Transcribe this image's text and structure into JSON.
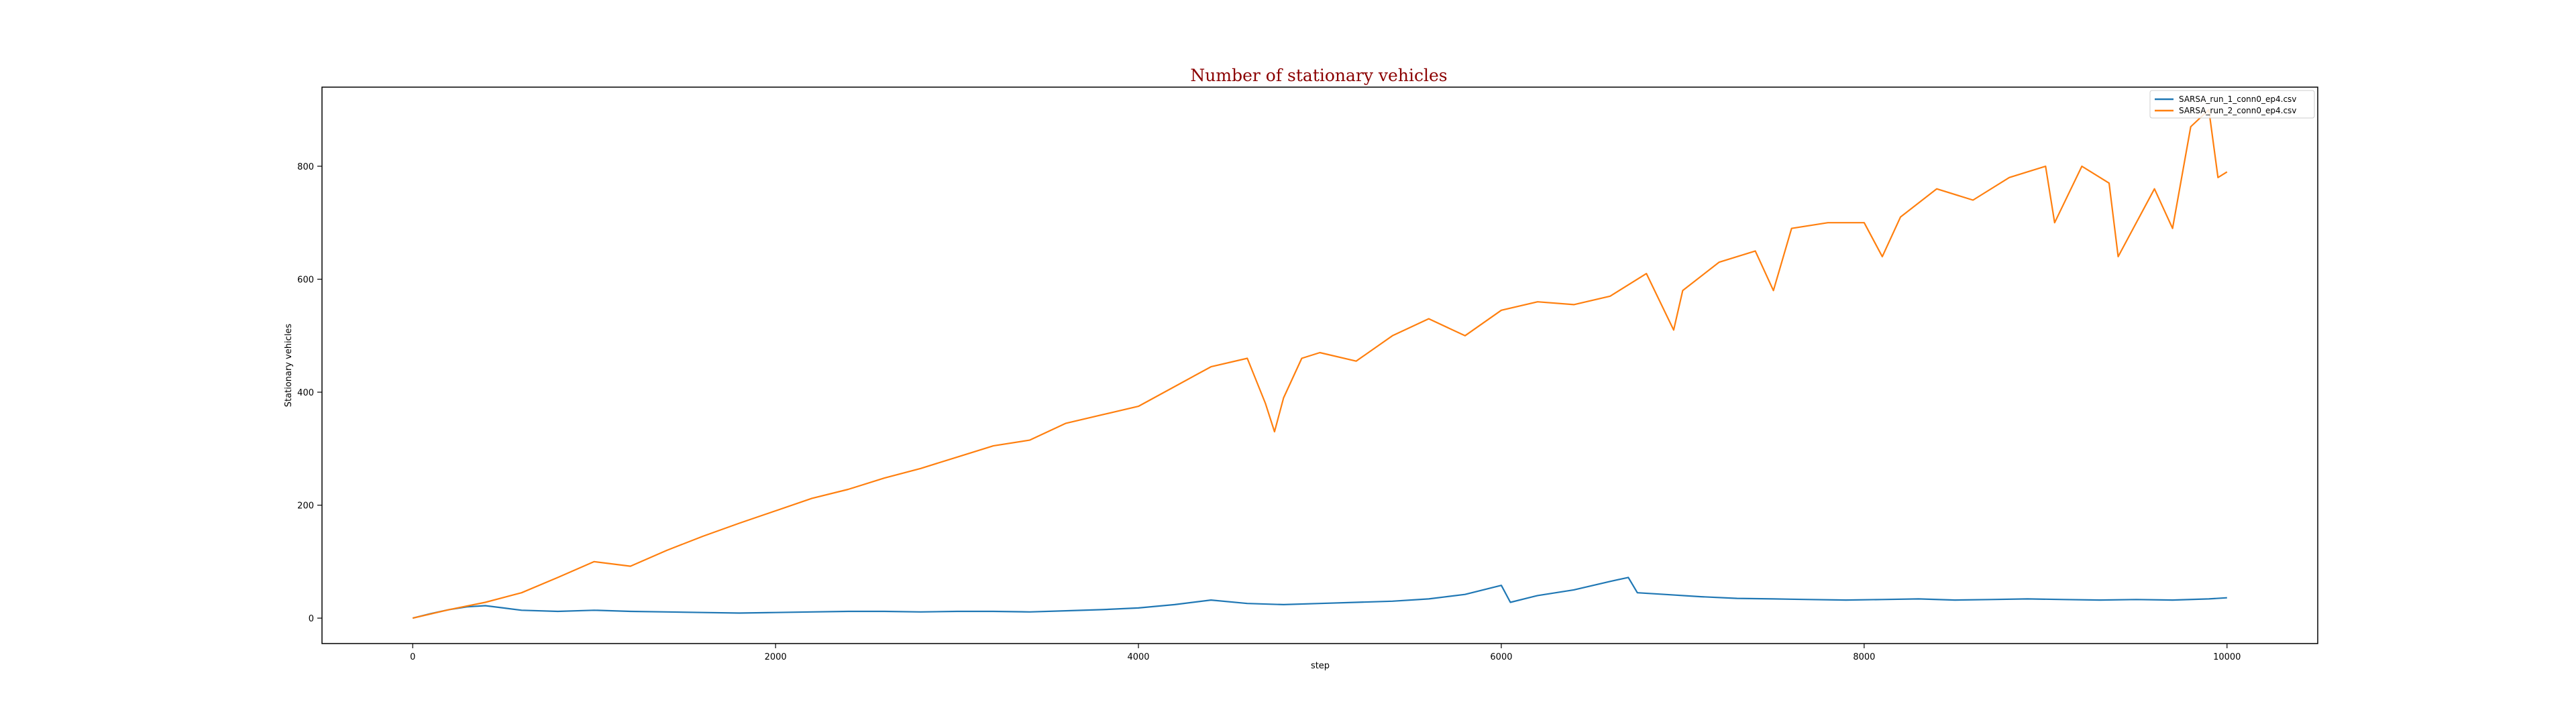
{
  "chart_data": {
    "type": "line",
    "title": "Number of stationary vehicles",
    "xlabel": "step",
    "ylabel": "Stationary vehicles",
    "xlim": [
      -500,
      10500
    ],
    "ylim": [
      -45,
      940
    ],
    "x_ticks": [
      0,
      2000,
      4000,
      6000,
      8000,
      10000
    ],
    "y_ticks": [
      0,
      200,
      400,
      600,
      800
    ],
    "grid": false,
    "legend_position": "top-right",
    "title_color": "#8b0000",
    "series": [
      {
        "name": "SARSA_run_1_conn0_ep4.csv",
        "color": "#1f77b4",
        "x": [
          0,
          100,
          200,
          300,
          400,
          500,
          600,
          800,
          1000,
          1200,
          1400,
          1600,
          1800,
          2000,
          2200,
          2400,
          2600,
          2800,
          3000,
          3200,
          3400,
          3600,
          3800,
          4000,
          4200,
          4400,
          4600,
          4800,
          5000,
          5200,
          5400,
          5600,
          5800,
          6000,
          6050,
          6200,
          6400,
          6600,
          6700,
          6750,
          6900,
          7100,
          7300,
          7500,
          7700,
          7900,
          8100,
          8300,
          8500,
          8700,
          8900,
          9100,
          9300,
          9500,
          9700,
          9900,
          10000
        ],
        "values": [
          0,
          8,
          15,
          20,
          22,
          18,
          14,
          12,
          14,
          12,
          11,
          10,
          9,
          10,
          11,
          12,
          12,
          11,
          12,
          12,
          11,
          13,
          15,
          18,
          24,
          32,
          26,
          24,
          26,
          28,
          30,
          34,
          42,
          58,
          28,
          40,
          50,
          65,
          72,
          45,
          42,
          38,
          35,
          34,
          33,
          32,
          33,
          34,
          32,
          33,
          34,
          33,
          32,
          33,
          32,
          34,
          36
        ]
      },
      {
        "name": "SARSA_run_2_conn0_ep4.csv",
        "color": "#ff7f0e",
        "x": [
          0,
          200,
          400,
          600,
          800,
          1000,
          1200,
          1400,
          1600,
          1800,
          2000,
          2200,
          2400,
          2600,
          2800,
          3000,
          3200,
          3400,
          3600,
          3800,
          4000,
          4200,
          4400,
          4600,
          4700,
          4750,
          4800,
          4900,
          5000,
          5200,
          5400,
          5600,
          5800,
          6000,
          6200,
          6400,
          6600,
          6800,
          6950,
          7000,
          7200,
          7400,
          7500,
          7600,
          7800,
          8000,
          8100,
          8200,
          8400,
          8600,
          8800,
          9000,
          9050,
          9200,
          9350,
          9400,
          9600,
          9700,
          9800,
          9900,
          9950,
          10000
        ],
        "values": [
          0,
          15,
          28,
          45,
          72,
          100,
          92,
          120,
          145,
          168,
          190,
          212,
          228,
          248,
          265,
          285,
          305,
          315,
          345,
          360,
          375,
          410,
          445,
          460,
          380,
          330,
          390,
          460,
          470,
          455,
          500,
          530,
          500,
          545,
          560,
          555,
          570,
          610,
          510,
          580,
          630,
          650,
          580,
          690,
          700,
          700,
          640,
          710,
          760,
          740,
          780,
          800,
          700,
          800,
          770,
          640,
          760,
          690,
          870,
          900,
          780,
          790
        ]
      }
    ]
  }
}
